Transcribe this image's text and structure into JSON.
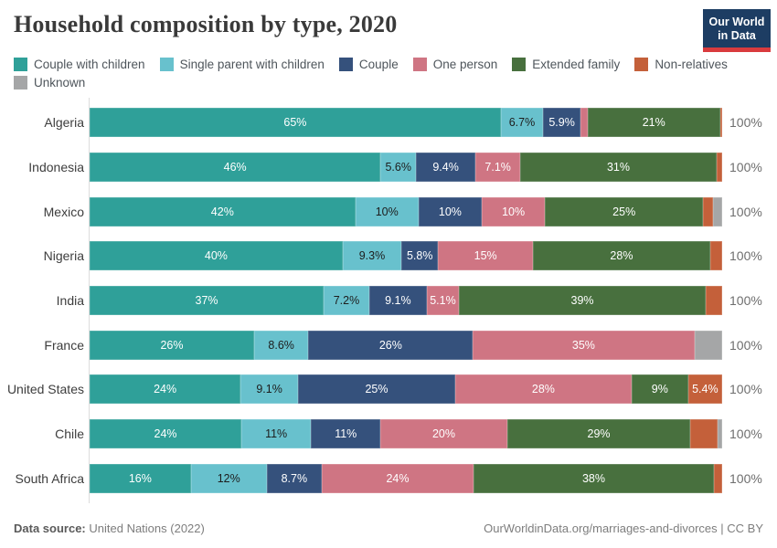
{
  "header": {
    "title": "Household composition by type, 2020",
    "logo": {
      "line1": "Our World",
      "line2": "in Data",
      "bg_color": "#1d3d63",
      "accent_color": "#d93b3e"
    }
  },
  "legend": {
    "rows": [
      [
        0,
        1,
        2,
        3,
        4,
        5
      ],
      [
        6
      ]
    ]
  },
  "chart_data": {
    "type": "bar",
    "variant": "horizontal-stacked-100-percent",
    "unit": "%",
    "title": "Household composition by type, 2020",
    "series": [
      "Couple with children",
      "Single parent with children",
      "Couple",
      "One person",
      "Extended family",
      "Non-relatives",
      "Unknown"
    ],
    "colors": [
      "#2fa099",
      "#68c1cd",
      "#35517c",
      "#cf7583",
      "#48703e",
      "#c4603a",
      "#a5a6a7"
    ],
    "label_colors": [
      "#ffffff",
      "#1d1d1d",
      "#ffffff",
      "#ffffff",
      "#ffffff",
      "#ffffff",
      "#1d1d1d"
    ],
    "axis_total_label": "100%",
    "categories": [
      "Algeria",
      "Indonesia",
      "Mexico",
      "Nigeria",
      "India",
      "France",
      "United States",
      "Chile",
      "South Africa"
    ],
    "rows": [
      {
        "country": "Algeria",
        "values": [
          65,
          6.7,
          5.9,
          1.1,
          21,
          0.3,
          0
        ],
        "labels": [
          "65%",
          "6.7%",
          "5.9%",
          "",
          "21%",
          "",
          ""
        ]
      },
      {
        "country": "Indonesia",
        "values": [
          46,
          5.6,
          9.4,
          7.1,
          31,
          0.9,
          0
        ],
        "labels": [
          "46%",
          "5.6%",
          "9.4%",
          "7.1%",
          "31%",
          "",
          ""
        ]
      },
      {
        "country": "Mexico",
        "values": [
          42,
          10,
          10,
          10,
          25,
          1.6,
          1.4
        ],
        "labels": [
          "42%",
          "10%",
          "10%",
          "10%",
          "25%",
          "",
          ""
        ]
      },
      {
        "country": "Nigeria",
        "values": [
          40,
          9.3,
          5.8,
          15,
          28,
          1.9,
          0
        ],
        "labels": [
          "40%",
          "9.3%",
          "5.8%",
          "15%",
          "28%",
          "",
          ""
        ]
      },
      {
        "country": "India",
        "values": [
          37,
          7.2,
          9.1,
          5.1,
          39,
          2.6,
          0
        ],
        "labels": [
          "37%",
          "7.2%",
          "9.1%",
          "5.1%",
          "39%",
          "",
          ""
        ]
      },
      {
        "country": "France",
        "values": [
          26,
          8.6,
          26,
          35,
          0,
          0,
          4.4
        ],
        "labels": [
          "26%",
          "8.6%",
          "26%",
          "35%",
          "",
          "",
          ""
        ]
      },
      {
        "country": "United States",
        "values": [
          24,
          9.1,
          25,
          28,
          9,
          5.4,
          0
        ],
        "labels": [
          "24%",
          "9.1%",
          "25%",
          "28%",
          "9%",
          "5.4%",
          ""
        ]
      },
      {
        "country": "Chile",
        "values": [
          24,
          11,
          11,
          20,
          29,
          4.3,
          0.7
        ],
        "labels": [
          "24%",
          "11%",
          "11%",
          "20%",
          "29%",
          "",
          ""
        ]
      },
      {
        "country": "South Africa",
        "values": [
          16,
          12,
          8.7,
          24,
          38,
          1.3,
          0
        ],
        "labels": [
          "16%",
          "12%",
          "8.7%",
          "24%",
          "38%",
          "",
          ""
        ]
      }
    ]
  },
  "footer": {
    "source_label": "Data source:",
    "source_value": "United Nations (2022)",
    "credit": "OurWorldinData.org/marriages-and-divorces | CC BY"
  }
}
